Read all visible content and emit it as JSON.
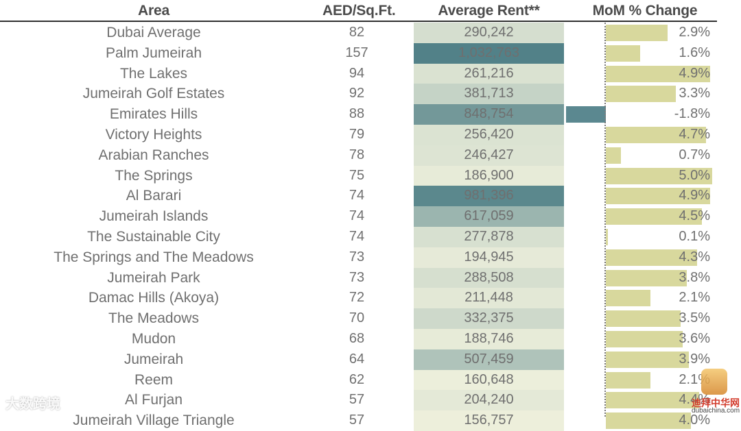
{
  "headers": {
    "area": "Area",
    "psf": "AED/Sq.Ft.",
    "rent": "Average Rent**",
    "mom": "MoM % Change"
  },
  "watermarks": {
    "left": "大数跨境",
    "right_logo": "迪拜中华网",
    "right_url": "dubaichina.com"
  },
  "colors": {
    "rent_low": "#eef0dc",
    "rent_high": "#4f7f86",
    "mom_positive": "#d8d89d",
    "mom_negative": "#5b8890",
    "text": "#6f6f6f"
  },
  "chart_data": {
    "type": "table",
    "title": "",
    "columns": [
      "Area",
      "AED/Sq.Ft.",
      "Average Rent**",
      "MoM % Change"
    ],
    "rows": [
      {
        "area": "Dubai Average",
        "psf": "82",
        "rent": "290,242",
        "rent_value": 290242,
        "mom": "2.9%",
        "mom_value": 2.9
      },
      {
        "area": "Palm Jumeirah",
        "psf": "157",
        "rent": "1,032,763",
        "rent_value": 1032763,
        "mom": "1.6%",
        "mom_value": 1.6
      },
      {
        "area": "The Lakes",
        "psf": "94",
        "rent": "261,216",
        "rent_value": 261216,
        "mom": "4.9%",
        "mom_value": 4.9
      },
      {
        "area": "Jumeirah Golf Estates",
        "psf": "92",
        "rent": "381,713",
        "rent_value": 381713,
        "mom": "3.3%",
        "mom_value": 3.3
      },
      {
        "area": "Emirates Hills",
        "psf": "88",
        "rent": "848,754",
        "rent_value": 848754,
        "mom": "-1.8%",
        "mom_value": -1.8
      },
      {
        "area": "Victory Heights",
        "psf": "79",
        "rent": "256,420",
        "rent_value": 256420,
        "mom": "4.7%",
        "mom_value": 4.7
      },
      {
        "area": "Arabian Ranches",
        "psf": "78",
        "rent": "246,427",
        "rent_value": 246427,
        "mom": "0.7%",
        "mom_value": 0.7
      },
      {
        "area": "The Springs",
        "psf": "75",
        "rent": "186,900",
        "rent_value": 186900,
        "mom": "5.0%",
        "mom_value": 5.0
      },
      {
        "area": "Al Barari",
        "psf": "74",
        "rent": "981,396",
        "rent_value": 981396,
        "mom": "4.9%",
        "mom_value": 4.9
      },
      {
        "area": "Jumeirah Islands",
        "psf": "74",
        "rent": "617,059",
        "rent_value": 617059,
        "mom": "4.5%",
        "mom_value": 4.5
      },
      {
        "area": "The Sustainable City",
        "psf": "74",
        "rent": "277,878",
        "rent_value": 277878,
        "mom": "0.1%",
        "mom_value": 0.1
      },
      {
        "area": "The Springs and The Meadows",
        "psf": "73",
        "rent": "194,945",
        "rent_value": 194945,
        "mom": "4.3%",
        "mom_value": 4.3
      },
      {
        "area": "Jumeirah Park",
        "psf": "73",
        "rent": "288,508",
        "rent_value": 288508,
        "mom": "3.8%",
        "mom_value": 3.8
      },
      {
        "area": "Damac Hills (Akoya)",
        "psf": "72",
        "rent": "211,448",
        "rent_value": 211448,
        "mom": "2.1%",
        "mom_value": 2.1
      },
      {
        "area": "The Meadows",
        "psf": "70",
        "rent": "332,375",
        "rent_value": 332375,
        "mom": "3.5%",
        "mom_value": 3.5
      },
      {
        "area": "Mudon",
        "psf": "68",
        "rent": "188,746",
        "rent_value": 188746,
        "mom": "3.6%",
        "mom_value": 3.6
      },
      {
        "area": "Jumeirah",
        "psf": "64",
        "rent": "507,459",
        "rent_value": 507459,
        "mom": "3.9%",
        "mom_value": 3.9
      },
      {
        "area": "Reem",
        "psf": "62",
        "rent": "160,648",
        "rent_value": 160648,
        "mom": "2.1%",
        "mom_value": 2.1
      },
      {
        "area": "Al Furjan",
        "psf": "57",
        "rent": "204,240",
        "rent_value": 204240,
        "mom": "4.4%",
        "mom_value": 4.4
      },
      {
        "area": "Jumeirah Village Triangle",
        "psf": "57",
        "rent": "156,757",
        "rent_value": 156757,
        "mom": "4.0%",
        "mom_value": 4.0
      }
    ],
    "rent_range": [
      150000,
      1050000
    ],
    "mom_range": [
      -1.8,
      5.0
    ]
  }
}
